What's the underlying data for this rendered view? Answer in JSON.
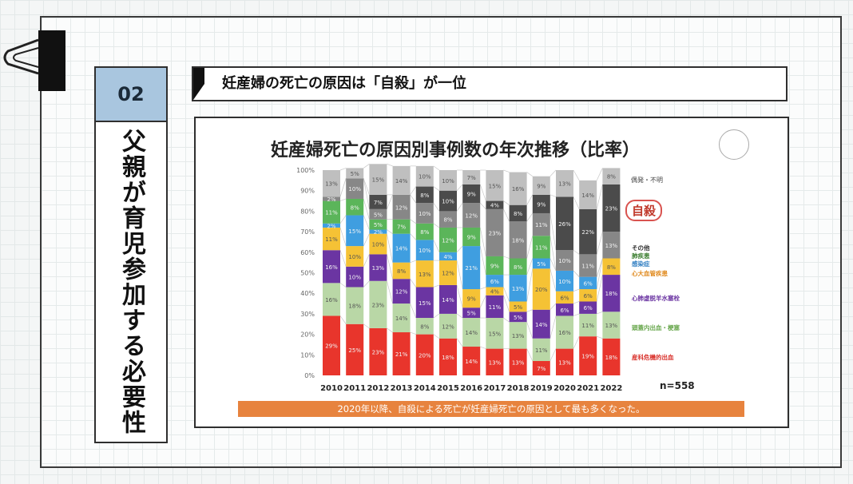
{
  "slide": {
    "number": "02",
    "vertical_title": "父親が育児参加する必要性",
    "banner": "妊産婦の死亡の原因は「自殺」が一位",
    "footer_note": "2020年以降、自殺による死亡が妊産婦死亡の原因として最も多くなった。",
    "n_label": "n=558"
  },
  "colors": {
    "frame": "#3a3a3a",
    "badge": "#a9c6df",
    "footer": "#e7833e"
  },
  "chart_data": {
    "type": "bar",
    "stacked": true,
    "percent": true,
    "title": "妊産婦死亡の原因別事例数の年次推移（比率）",
    "categories": [
      "2010",
      "2011",
      "2012",
      "2013",
      "2014",
      "2015",
      "2016",
      "2017",
      "2018",
      "2019",
      "2020",
      "2021",
      "2022"
    ],
    "y_ticks": [
      "0%",
      "10%",
      "20%",
      "30%",
      "40%",
      "50%",
      "60%",
      "70%",
      "80%",
      "90%",
      "100%"
    ],
    "ylim": [
      0,
      100
    ],
    "series": [
      {
        "name": "産科危機的出血",
        "color": "#e8352c",
        "values": [
          29,
          25,
          23,
          21,
          20,
          18,
          14,
          13,
          13,
          7,
          13,
          19,
          18
        ]
      },
      {
        "name": "頭蓋内出血・梗塞",
        "color": "#b9d7a6",
        "values": [
          16,
          18,
          23,
          14,
          8,
          12,
          14,
          15,
          13,
          11,
          16,
          11,
          13
        ]
      },
      {
        "name": "心肺虚脱羊水塞栓",
        "color": "#6b35a2",
        "values": [
          16,
          10,
          13,
          12,
          15,
          14,
          5,
          11,
          5,
          14,
          6,
          6,
          18
        ]
      },
      {
        "name": "心大血管疾患",
        "color": "#f5c235",
        "values": [
          11,
          10,
          10,
          8,
          13,
          12,
          9,
          4,
          5,
          20,
          6,
          6,
          8
        ]
      },
      {
        "name": "感染症",
        "color": "#3f9ee0",
        "values": [
          2,
          15,
          2,
          14,
          10,
          4,
          21,
          6,
          13,
          5,
          10,
          6,
          0
        ]
      },
      {
        "name": "肺疾患",
        "color": "#5bb55a",
        "values": [
          11,
          8,
          5,
          7,
          8,
          12,
          9,
          9,
          8,
          11,
          0,
          0,
          0
        ]
      },
      {
        "name": "その他",
        "color": "#878787",
        "values": [
          2,
          10,
          5,
          12,
          10,
          8,
          12,
          23,
          18,
          11,
          10,
          11,
          13
        ]
      },
      {
        "name": "自殺",
        "color": "#4b4b4b",
        "values": [
          0,
          0,
          7,
          0,
          8,
          10,
          9,
          4,
          8,
          9,
          26,
          22,
          23
        ]
      },
      {
        "name": "偶発・不明",
        "color": "#bfbfbf",
        "values": [
          13,
          5,
          15,
          14,
          10,
          10,
          7,
          15,
          16,
          9,
          13,
          14,
          8
        ]
      }
    ],
    "legend": {
      "top_label": "偶発・不明",
      "highlight": "自殺",
      "items": [
        {
          "label": "その他",
          "color": "#333333"
        },
        {
          "label": "肺疾患",
          "color": "#3a7d2e"
        },
        {
          "label": "感染症",
          "color": "#2e7dc1"
        },
        {
          "label": "心大血管疾患",
          "color": "#e08a1e"
        },
        {
          "label": "心肺虚脱羊水塞栓",
          "color": "#6b35a2"
        },
        {
          "label": "頭蓋内出血・梗塞",
          "color": "#6aa84f"
        },
        {
          "label": "産科危機的出血",
          "color": "#d9302a"
        }
      ]
    }
  }
}
